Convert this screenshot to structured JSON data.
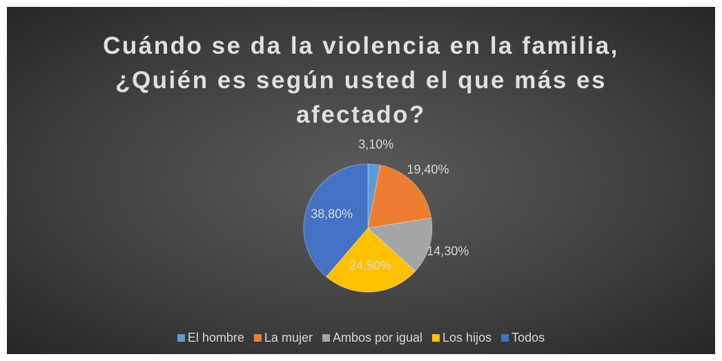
{
  "chart_data": {
    "type": "pie",
    "title": "Cuándo se da la violencia en la familia, ¿Quién es según usted el que más es afectado?",
    "categories": [
      "El hombre",
      "La mujer",
      "Ambos por igual",
      "Los hijos",
      "Todos"
    ],
    "values": [
      3.1,
      19.4,
      14.3,
      24.5,
      38.8
    ],
    "value_labels": [
      "3,10%",
      "19,40%",
      "14,30%",
      "24,50%",
      "38,80%"
    ],
    "colors": [
      "#5b9bd5",
      "#ed7d31",
      "#a5a5a5",
      "#ffc000",
      "#4472c4"
    ],
    "legend": "bottom"
  }
}
